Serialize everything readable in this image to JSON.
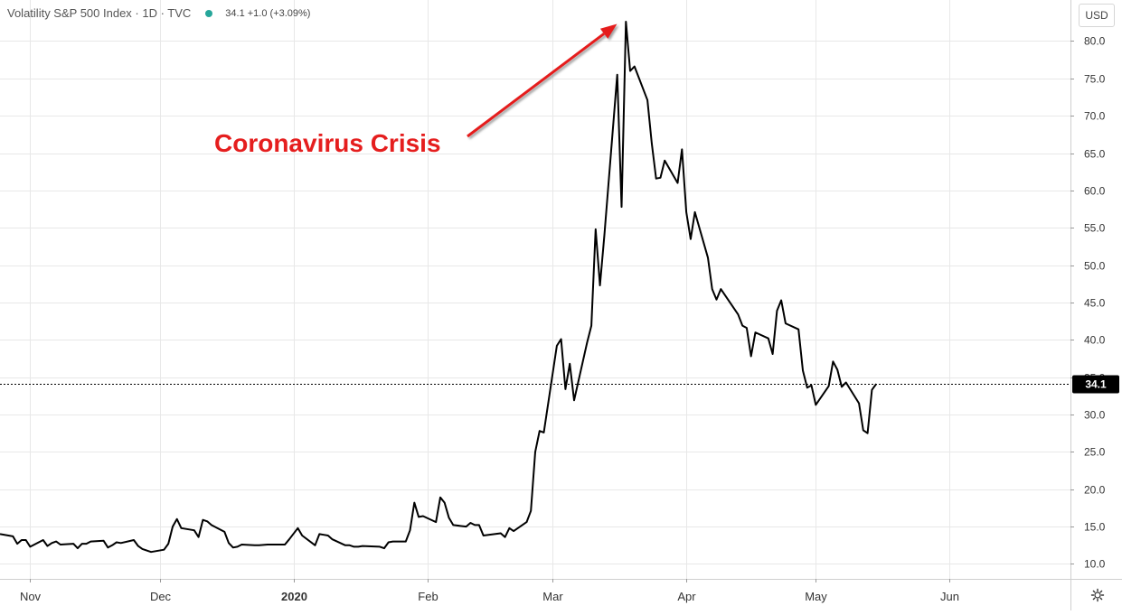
{
  "header": {
    "symbol_title": "Volatility S&P 500 Index · 1D · TVC",
    "dot_color": "#26a69a",
    "price_change": "34.1  +1.0 (+3.09%)"
  },
  "currency_label": "USD",
  "settings_icon": "gear-icon",
  "colors": {
    "line": "#000000",
    "annotation": "#e51e1e",
    "grid": "#e8e8e8",
    "price_tag": "#000000"
  },
  "chart_data": {
    "type": "line",
    "title": "Volatility S&P 500 Index",
    "ylabel": "",
    "xlabel": "",
    "ylim": [
      8.0,
      85.5
    ],
    "grid": true,
    "y_ticks": [
      "10.0",
      "15.0",
      "20.0",
      "25.0",
      "30.0",
      "35.0",
      "40.0",
      "45.0",
      "50.0",
      "55.0",
      "60.0",
      "65.0",
      "70.0",
      "75.0",
      "80.0"
    ],
    "x_ticks": [
      {
        "label": "Nov",
        "date": "2019-11-01",
        "bold": false
      },
      {
        "label": "Dec",
        "date": "2019-12-01",
        "bold": false
      },
      {
        "label": "2020",
        "date": "2020-01-01",
        "bold": true
      },
      {
        "label": "Feb",
        "date": "2020-02-01",
        "bold": false
      },
      {
        "label": "Mar",
        "date": "2020-03-01",
        "bold": false
      },
      {
        "label": "Apr",
        "date": "2020-04-01",
        "bold": false
      },
      {
        "label": "May",
        "date": "2020-05-01",
        "bold": false
      },
      {
        "label": "Jun",
        "date": "2020-06-01",
        "bold": false
      }
    ],
    "x_range": [
      "2019-10-25",
      "2020-06-29"
    ],
    "last_value_label": "34.1",
    "last_value": 34.1,
    "series": [
      {
        "values": [
          [
            "2019-10-25",
            14.0
          ],
          [
            "2019-10-28",
            13.7
          ],
          [
            "2019-10-29",
            12.7
          ],
          [
            "2019-10-30",
            13.2
          ],
          [
            "2019-10-31",
            13.2
          ],
          [
            "2019-11-01",
            12.3
          ],
          [
            "2019-11-04",
            13.2
          ],
          [
            "2019-11-05",
            12.4
          ],
          [
            "2019-11-06",
            12.8
          ],
          [
            "2019-11-07",
            13.0
          ],
          [
            "2019-11-08",
            12.6
          ],
          [
            "2019-11-11",
            12.7
          ],
          [
            "2019-11-12",
            12.1
          ],
          [
            "2019-11-13",
            12.7
          ],
          [
            "2019-11-14",
            12.7
          ],
          [
            "2019-11-15",
            13.0
          ],
          [
            "2019-11-18",
            13.1
          ],
          [
            "2019-11-19",
            12.2
          ],
          [
            "2019-11-20",
            12.5
          ],
          [
            "2019-11-21",
            12.9
          ],
          [
            "2019-11-22",
            12.8
          ],
          [
            "2019-11-25",
            13.2
          ],
          [
            "2019-11-26",
            12.4
          ],
          [
            "2019-11-27",
            12.0
          ],
          [
            "2019-11-29",
            11.6
          ],
          [
            "2019-12-02",
            11.9
          ],
          [
            "2019-12-03",
            12.7
          ],
          [
            "2019-12-04",
            15.0
          ],
          [
            "2019-12-05",
            16.0
          ],
          [
            "2019-12-06",
            14.8
          ],
          [
            "2019-12-09",
            14.5
          ],
          [
            "2019-12-10",
            13.6
          ],
          [
            "2019-12-11",
            15.9
          ],
          [
            "2019-12-12",
            15.7
          ],
          [
            "2019-12-13",
            15.2
          ],
          [
            "2019-12-16",
            14.3
          ],
          [
            "2019-12-17",
            12.8
          ],
          [
            "2019-12-18",
            12.2
          ],
          [
            "2019-12-19",
            12.3
          ],
          [
            "2019-12-20",
            12.6
          ],
          [
            "2019-12-23",
            12.5
          ],
          [
            "2019-12-24",
            12.5
          ],
          [
            "2019-12-26",
            12.6
          ],
          [
            "2019-12-27",
            12.6
          ],
          [
            "2019-12-30",
            12.6
          ],
          [
            "2019-12-31",
            13.3
          ],
          [
            "2020-01-02",
            14.8
          ],
          [
            "2020-01-03",
            13.8
          ],
          [
            "2020-01-06",
            12.5
          ],
          [
            "2020-01-07",
            14.0
          ],
          [
            "2020-01-08",
            13.9
          ],
          [
            "2020-01-09",
            13.8
          ],
          [
            "2020-01-10",
            13.3
          ],
          [
            "2020-01-13",
            12.5
          ],
          [
            "2020-01-14",
            12.5
          ],
          [
            "2020-01-15",
            12.3
          ],
          [
            "2020-01-16",
            12.3
          ],
          [
            "2020-01-17",
            12.4
          ],
          [
            "2020-01-21",
            12.3
          ],
          [
            "2020-01-22",
            12.1
          ],
          [
            "2020-01-23",
            12.9
          ],
          [
            "2020-01-24",
            13.0
          ],
          [
            "2020-01-27",
            13.0
          ],
          [
            "2020-01-28",
            14.5
          ],
          [
            "2020-01-29",
            18.2
          ],
          [
            "2020-01-30",
            16.3
          ],
          [
            "2020-01-31",
            16.4
          ],
          [
            "2020-02-03",
            15.6
          ],
          [
            "2020-02-04",
            18.9
          ],
          [
            "2020-02-05",
            18.2
          ],
          [
            "2020-02-06",
            16.2
          ],
          [
            "2020-02-07",
            15.2
          ],
          [
            "2020-02-10",
            15.0
          ],
          [
            "2020-02-11",
            15.5
          ],
          [
            "2020-02-12",
            15.2
          ],
          [
            "2020-02-13",
            15.2
          ],
          [
            "2020-02-14",
            13.8
          ],
          [
            "2020-02-18",
            14.1
          ],
          [
            "2020-02-19",
            13.6
          ],
          [
            "2020-02-20",
            14.8
          ],
          [
            "2020-02-21",
            14.4
          ],
          [
            "2020-02-24",
            15.6
          ],
          [
            "2020-02-25",
            17.1
          ],
          [
            "2020-02-26",
            25.0
          ],
          [
            "2020-02-27",
            27.8
          ],
          [
            "2020-02-28",
            27.6
          ],
          [
            "2020-03-02",
            39.2
          ],
          [
            "2020-03-03",
            40.1
          ],
          [
            "2020-03-04",
            33.4
          ],
          [
            "2020-03-05",
            36.8
          ],
          [
            "2020-03-06",
            31.9
          ],
          [
            "2020-03-09",
            39.6
          ],
          [
            "2020-03-10",
            41.9
          ],
          [
            "2020-03-11",
            54.8
          ],
          [
            "2020-03-12",
            47.3
          ],
          [
            "2020-03-13",
            53.9
          ],
          [
            "2020-03-16",
            75.5
          ],
          [
            "2020-03-17",
            57.8
          ],
          [
            "2020-03-18",
            82.6
          ],
          [
            "2020-03-19",
            76.0
          ],
          [
            "2020-03-20",
            76.6
          ],
          [
            "2020-03-23",
            72.1
          ],
          [
            "2020-03-24",
            66.3
          ],
          [
            "2020-03-25",
            61.6
          ],
          [
            "2020-03-26",
            61.7
          ],
          [
            "2020-03-27",
            64.0
          ],
          [
            "2020-03-30",
            61.0
          ],
          [
            "2020-03-31",
            65.5
          ],
          [
            "2020-04-01",
            57.1
          ],
          [
            "2020-04-02",
            53.5
          ],
          [
            "2020-04-03",
            57.1
          ],
          [
            "2020-04-06",
            51.0
          ],
          [
            "2020-04-07",
            46.8
          ],
          [
            "2020-04-08",
            45.4
          ],
          [
            "2020-04-09",
            46.8
          ],
          [
            "2020-04-13",
            43.4
          ],
          [
            "2020-04-14",
            41.9
          ],
          [
            "2020-04-15",
            41.6
          ],
          [
            "2020-04-16",
            37.8
          ],
          [
            "2020-04-17",
            41.0
          ],
          [
            "2020-04-20",
            40.2
          ],
          [
            "2020-04-21",
            38.1
          ],
          [
            "2020-04-22",
            43.9
          ],
          [
            "2020-04-23",
            45.3
          ],
          [
            "2020-04-24",
            42.2
          ],
          [
            "2020-04-27",
            41.4
          ],
          [
            "2020-04-28",
            35.9
          ],
          [
            "2020-04-29",
            33.6
          ],
          [
            "2020-04-30",
            33.9
          ],
          [
            "2020-05-01",
            31.3
          ],
          [
            "2020-05-04",
            33.8
          ],
          [
            "2020-05-05",
            37.1
          ],
          [
            "2020-05-06",
            36.0
          ],
          [
            "2020-05-07",
            33.7
          ],
          [
            "2020-05-08",
            34.3
          ],
          [
            "2020-05-11",
            31.5
          ],
          [
            "2020-05-12",
            27.9
          ],
          [
            "2020-05-13",
            27.5
          ],
          [
            "2020-05-14",
            33.3
          ],
          [
            "2020-05-15",
            34.1
          ]
        ]
      }
    ],
    "annotations": [
      {
        "text": "Coronavirus Crisis",
        "target_date": "2020-03-17",
        "target_value": 82.3
      }
    ]
  }
}
